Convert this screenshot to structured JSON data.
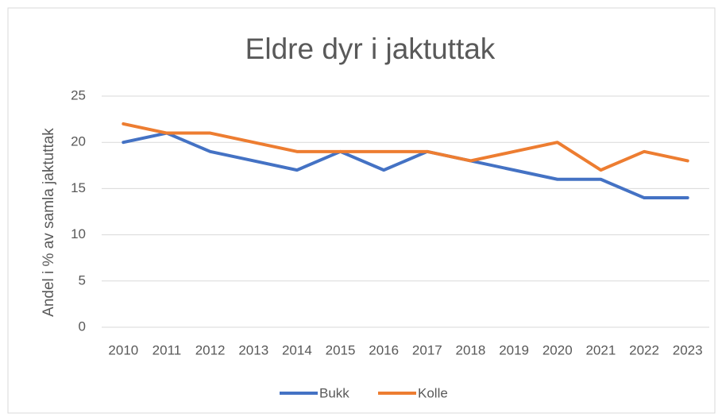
{
  "chart_data": {
    "type": "line",
    "title": "Eldre dyr i jaktuttak",
    "y_label": "Andel i % av samla jaktuttak",
    "categories": [
      "2010",
      "2011",
      "2012",
      "2013",
      "2014",
      "2015",
      "2016",
      "2017",
      "2018",
      "2019",
      "2020",
      "2021",
      "2022",
      "2023"
    ],
    "series": [
      {
        "name": "Bukk",
        "color": "#4472c4",
        "values": [
          20,
          21,
          19,
          18,
          17,
          19,
          17,
          19,
          18,
          17,
          16,
          16,
          14,
          14
        ]
      },
      {
        "name": "Kolle",
        "color": "#ed7d31",
        "values": [
          22,
          21,
          21,
          20,
          19,
          19,
          19,
          19,
          18,
          19,
          20,
          17,
          19,
          18
        ]
      }
    ],
    "ylim": [
      0,
      25
    ],
    "yticks": [
      0,
      5,
      10,
      15,
      20,
      25
    ],
    "grid": true,
    "legend": "bottom"
  }
}
